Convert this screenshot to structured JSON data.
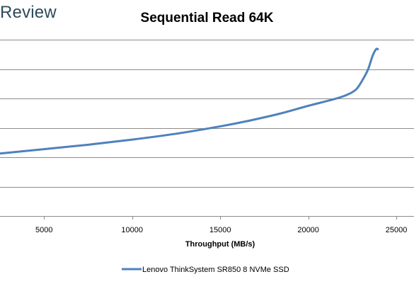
{
  "logo": {
    "text": "Review"
  },
  "chart_data": {
    "type": "line",
    "title": "Sequential Read 64K",
    "xlabel": "Throughput (MB/s)",
    "ylabel": "",
    "xlim": [
      2500,
      26000
    ],
    "ylim": [
      0,
      12
    ],
    "x_ticks": [
      5000,
      10000,
      15000,
      20000,
      25000
    ],
    "y_gridlines": [
      2,
      4,
      6,
      8,
      10,
      12
    ],
    "grid": true,
    "legend": "bottom",
    "color": "#4f81bd",
    "series": [
      {
        "name": "Lenovo ThinkSystem SR850 8 NVMe SSD",
        "x": [
          2500,
          5000,
          7500,
          10000,
          12500,
          15000,
          16700,
          18500,
          20000,
          21300,
          22100,
          22700,
          23100,
          23400,
          23650,
          23850,
          23950
        ],
        "y": [
          4.25,
          4.55,
          4.85,
          5.2,
          5.6,
          6.1,
          6.5,
          7.0,
          7.5,
          7.9,
          8.2,
          8.6,
          9.3,
          10.0,
          10.9,
          11.35,
          11.35
        ]
      }
    ]
  }
}
